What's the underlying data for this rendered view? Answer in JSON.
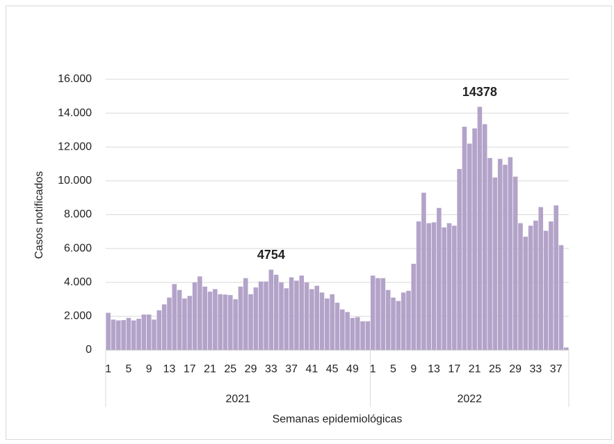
{
  "chart_data": {
    "type": "bar",
    "y_label": "Casos notificados",
    "x_label": "Semanas epidemiológicas",
    "color": "#b3a3c9",
    "ylim": [
      0,
      16000
    ],
    "yticks": [
      0,
      {
        "value": 2000,
        "label": "2.000"
      },
      {
        "value": 4000,
        "label": "4.000"
      },
      {
        "value": 6000,
        "label": "6.000"
      },
      {
        "value": 8000,
        "label": "8.000"
      },
      {
        "value": 10000,
        "label": "10.000"
      },
      {
        "value": 12000,
        "label": "12.000"
      },
      {
        "value": 14000,
        "label": "14.000"
      },
      {
        "value": 16000,
        "label": "16.000"
      }
    ],
    "grid": true,
    "groups": [
      {
        "name": "2021",
        "categories": [
          "1",
          null,
          null,
          null,
          "5",
          null,
          null,
          null,
          "9",
          null,
          null,
          null,
          "13",
          null,
          null,
          null,
          "17",
          null,
          null,
          null,
          "21",
          null,
          null,
          null,
          "25",
          null,
          null,
          null,
          "29",
          null,
          null,
          null,
          "33",
          null,
          null,
          null,
          "37",
          null,
          null,
          null,
          "41",
          null,
          null,
          null,
          "45",
          null,
          null,
          null,
          "49",
          null,
          null,
          null
        ],
        "values": [
          2200,
          1800,
          1750,
          1770,
          1900,
          1750,
          1850,
          2100,
          2100,
          1800,
          2350,
          2700,
          3100,
          3900,
          3550,
          3050,
          3200,
          4000,
          4350,
          3750,
          3450,
          3600,
          3300,
          3280,
          3250,
          3000,
          3750,
          4250,
          3300,
          3700,
          4050,
          4050,
          4754,
          4450,
          4000,
          3650,
          4300,
          4100,
          4400,
          4000,
          3600,
          3800,
          3400,
          3050,
          3300,
          2800,
          2400,
          2250,
          1900,
          1950,
          1700,
          1700
        ],
        "value_labels": [
          null,
          null,
          null,
          null,
          null,
          null,
          null,
          null,
          null,
          null,
          null,
          null,
          null,
          null,
          null,
          null,
          null,
          null,
          null,
          null,
          null,
          null,
          null,
          null,
          null,
          null,
          null,
          null,
          null,
          null,
          null,
          null,
          "4754",
          null,
          null,
          null,
          null,
          null,
          null,
          null,
          null,
          null,
          null,
          null,
          null,
          null,
          null,
          null,
          null,
          null,
          null,
          null
        ]
      },
      {
        "name": "2022",
        "categories": [
          "1",
          null,
          null,
          null,
          "5",
          null,
          null,
          null,
          "9",
          null,
          null,
          null,
          "13",
          null,
          null,
          null,
          "17",
          null,
          null,
          null,
          "21",
          null,
          null,
          null,
          "25",
          null,
          null,
          null,
          "29",
          null,
          null,
          null,
          "33",
          null,
          null,
          null,
          "37",
          null,
          null
        ],
        "values": [
          4400,
          4250,
          4250,
          3550,
          3100,
          2900,
          3400,
          3500,
          5100,
          7600,
          9300,
          7500,
          7550,
          8400,
          7250,
          7500,
          7350,
          10700,
          13200,
          12200,
          13100,
          14378,
          13350,
          11350,
          10200,
          11300,
          10950,
          11400,
          10250,
          7500,
          6700,
          7350,
          7650,
          8450,
          7050,
          7600,
          8550,
          6200,
          150
        ],
        "value_labels": [
          null,
          null,
          null,
          null,
          null,
          null,
          null,
          null,
          null,
          null,
          null,
          null,
          null,
          null,
          null,
          null,
          null,
          null,
          null,
          null,
          null,
          "14378",
          null,
          null,
          null,
          null,
          null,
          null,
          null,
          null,
          null,
          null,
          null,
          null,
          null,
          null,
          null,
          null,
          null
        ]
      }
    ]
  }
}
